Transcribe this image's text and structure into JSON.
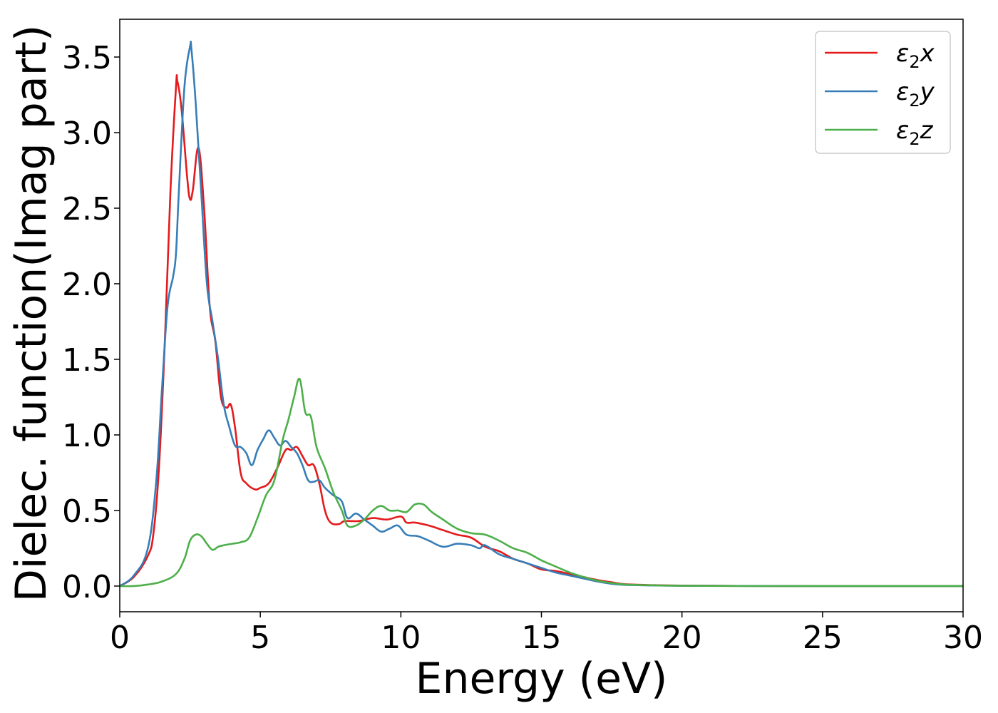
{
  "chart_data": {
    "type": "line",
    "title": "",
    "xlabel": "Energy (eV)",
    "ylabel": "Dielec. function(Imag part)",
    "xlim": [
      0,
      30
    ],
    "ylim": [
      -0.17,
      3.75
    ],
    "xticks": [
      0,
      5,
      10,
      15,
      20,
      25,
      30
    ],
    "xtick_labels": [
      "0",
      "5",
      "10",
      "15",
      "20",
      "25",
      "30"
    ],
    "yticks": [
      0.0,
      0.5,
      1.0,
      1.5,
      2.0,
      2.5,
      3.0,
      3.5
    ],
    "ytick_labels": [
      "0.0",
      "0.5",
      "1.0",
      "1.5",
      "2.0",
      "2.5",
      "3.0",
      "3.5"
    ],
    "grid": false,
    "legend_position": "top-right",
    "series": [
      {
        "name": "ε₂x",
        "legend_base": "ε",
        "legend_sub": "2",
        "legend_suffix": "x",
        "color": "#e41a1c",
        "x": [
          0,
          0.5,
          1.0,
          1.2,
          1.4,
          1.6,
          1.8,
          2.0,
          2.05,
          2.2,
          2.4,
          2.5,
          2.6,
          2.8,
          3.0,
          3.2,
          3.4,
          3.6,
          3.8,
          3.95,
          4.1,
          4.3,
          4.5,
          4.8,
          5.0,
          5.3,
          5.6,
          5.9,
          6.1,
          6.3,
          6.5,
          6.7,
          6.9,
          7.1,
          7.3,
          7.5,
          7.8,
          8.0,
          8.5,
          9.0,
          9.5,
          10.0,
          10.2,
          10.5,
          11.0,
          11.5,
          12.0,
          12.5,
          13.0,
          13.5,
          14.0,
          14.5,
          15.0,
          15.5,
          16.0,
          16.5,
          17.0,
          17.5,
          18.0,
          19.0,
          20.0,
          22.0,
          25.0,
          30.0
        ],
        "y": [
          0.0,
          0.06,
          0.2,
          0.35,
          0.8,
          1.6,
          2.6,
          3.3,
          3.34,
          3.15,
          2.7,
          2.56,
          2.62,
          2.9,
          2.5,
          1.85,
          1.62,
          1.25,
          1.18,
          1.2,
          1.05,
          0.75,
          0.68,
          0.64,
          0.65,
          0.68,
          0.78,
          0.9,
          0.9,
          0.92,
          0.86,
          0.8,
          0.8,
          0.68,
          0.5,
          0.42,
          0.41,
          0.43,
          0.43,
          0.45,
          0.44,
          0.46,
          0.42,
          0.42,
          0.4,
          0.37,
          0.34,
          0.32,
          0.26,
          0.23,
          0.18,
          0.15,
          0.11,
          0.1,
          0.08,
          0.06,
          0.04,
          0.025,
          0.012,
          0.006,
          0.003,
          0.001,
          0.0,
          0.0
        ]
      },
      {
        "name": "ε₂y",
        "legend_base": "ε",
        "legend_sub": "2",
        "legend_suffix": "y",
        "color": "#377eb8",
        "x": [
          0,
          0.5,
          1.0,
          1.3,
          1.5,
          1.7,
          1.9,
          2.0,
          2.1,
          2.3,
          2.5,
          2.55,
          2.7,
          2.9,
          3.1,
          3.3,
          3.5,
          3.7,
          3.9,
          4.1,
          4.3,
          4.5,
          4.7,
          4.9,
          5.1,
          5.3,
          5.5,
          5.7,
          5.9,
          6.1,
          6.3,
          6.5,
          6.7,
          6.9,
          7.1,
          7.3,
          7.6,
          7.9,
          8.1,
          8.4,
          8.7,
          9.0,
          9.3,
          9.6,
          9.9,
          10.2,
          10.6,
          11.0,
          11.5,
          12.0,
          12.5,
          12.8,
          13.0,
          13.5,
          14.0,
          14.5,
          15.0,
          15.5,
          16.0,
          16.5,
          17.0,
          17.5,
          18.0,
          19.0,
          20.0,
          22.0,
          25.0,
          30.0
        ],
        "y": [
          0.0,
          0.07,
          0.25,
          0.7,
          1.3,
          1.85,
          2.05,
          2.2,
          2.6,
          3.3,
          3.57,
          3.55,
          3.2,
          2.6,
          2.0,
          1.75,
          1.5,
          1.2,
          1.05,
          0.93,
          0.92,
          0.88,
          0.8,
          0.9,
          0.97,
          1.03,
          0.98,
          0.93,
          0.96,
          0.92,
          0.88,
          0.8,
          0.7,
          0.69,
          0.7,
          0.65,
          0.6,
          0.56,
          0.45,
          0.48,
          0.44,
          0.4,
          0.36,
          0.38,
          0.4,
          0.34,
          0.33,
          0.3,
          0.26,
          0.28,
          0.27,
          0.25,
          0.27,
          0.21,
          0.18,
          0.15,
          0.12,
          0.09,
          0.07,
          0.05,
          0.03,
          0.015,
          0.008,
          0.004,
          0.002,
          0.001,
          0.0,
          0.0
        ]
      },
      {
        "name": "ε₂z",
        "legend_base": "ε",
        "legend_sub": "2",
        "legend_suffix": "z",
        "color": "#4daf4a",
        "x": [
          0,
          0.5,
          1.0,
          1.5,
          2.0,
          2.3,
          2.5,
          2.7,
          2.9,
          3.1,
          3.3,
          3.5,
          3.7,
          4.0,
          4.3,
          4.6,
          4.9,
          5.2,
          5.5,
          5.8,
          6.0,
          6.2,
          6.4,
          6.6,
          6.8,
          7.0,
          7.3,
          7.6,
          7.9,
          8.1,
          8.4,
          8.7,
          9.0,
          9.3,
          9.6,
          9.9,
          10.2,
          10.5,
          10.8,
          11.1,
          11.5,
          12.0,
          12.5,
          13.0,
          13.5,
          14.0,
          14.5,
          15.0,
          15.5,
          16.0,
          16.5,
          17.0,
          17.5,
          18.0,
          19.0,
          20.0,
          22.0,
          25.0,
          30.0
        ],
        "y": [
          0.0,
          0.0,
          0.01,
          0.03,
          0.08,
          0.18,
          0.3,
          0.34,
          0.33,
          0.28,
          0.24,
          0.26,
          0.27,
          0.28,
          0.29,
          0.32,
          0.45,
          0.6,
          0.7,
          0.97,
          1.1,
          1.25,
          1.37,
          1.15,
          1.12,
          0.92,
          0.78,
          0.62,
          0.5,
          0.4,
          0.4,
          0.44,
          0.5,
          0.53,
          0.5,
          0.5,
          0.49,
          0.54,
          0.54,
          0.49,
          0.44,
          0.38,
          0.35,
          0.34,
          0.3,
          0.25,
          0.22,
          0.17,
          0.13,
          0.09,
          0.06,
          0.035,
          0.02,
          0.01,
          0.005,
          0.002,
          0.0,
          0.0,
          0.0
        ]
      }
    ]
  }
}
